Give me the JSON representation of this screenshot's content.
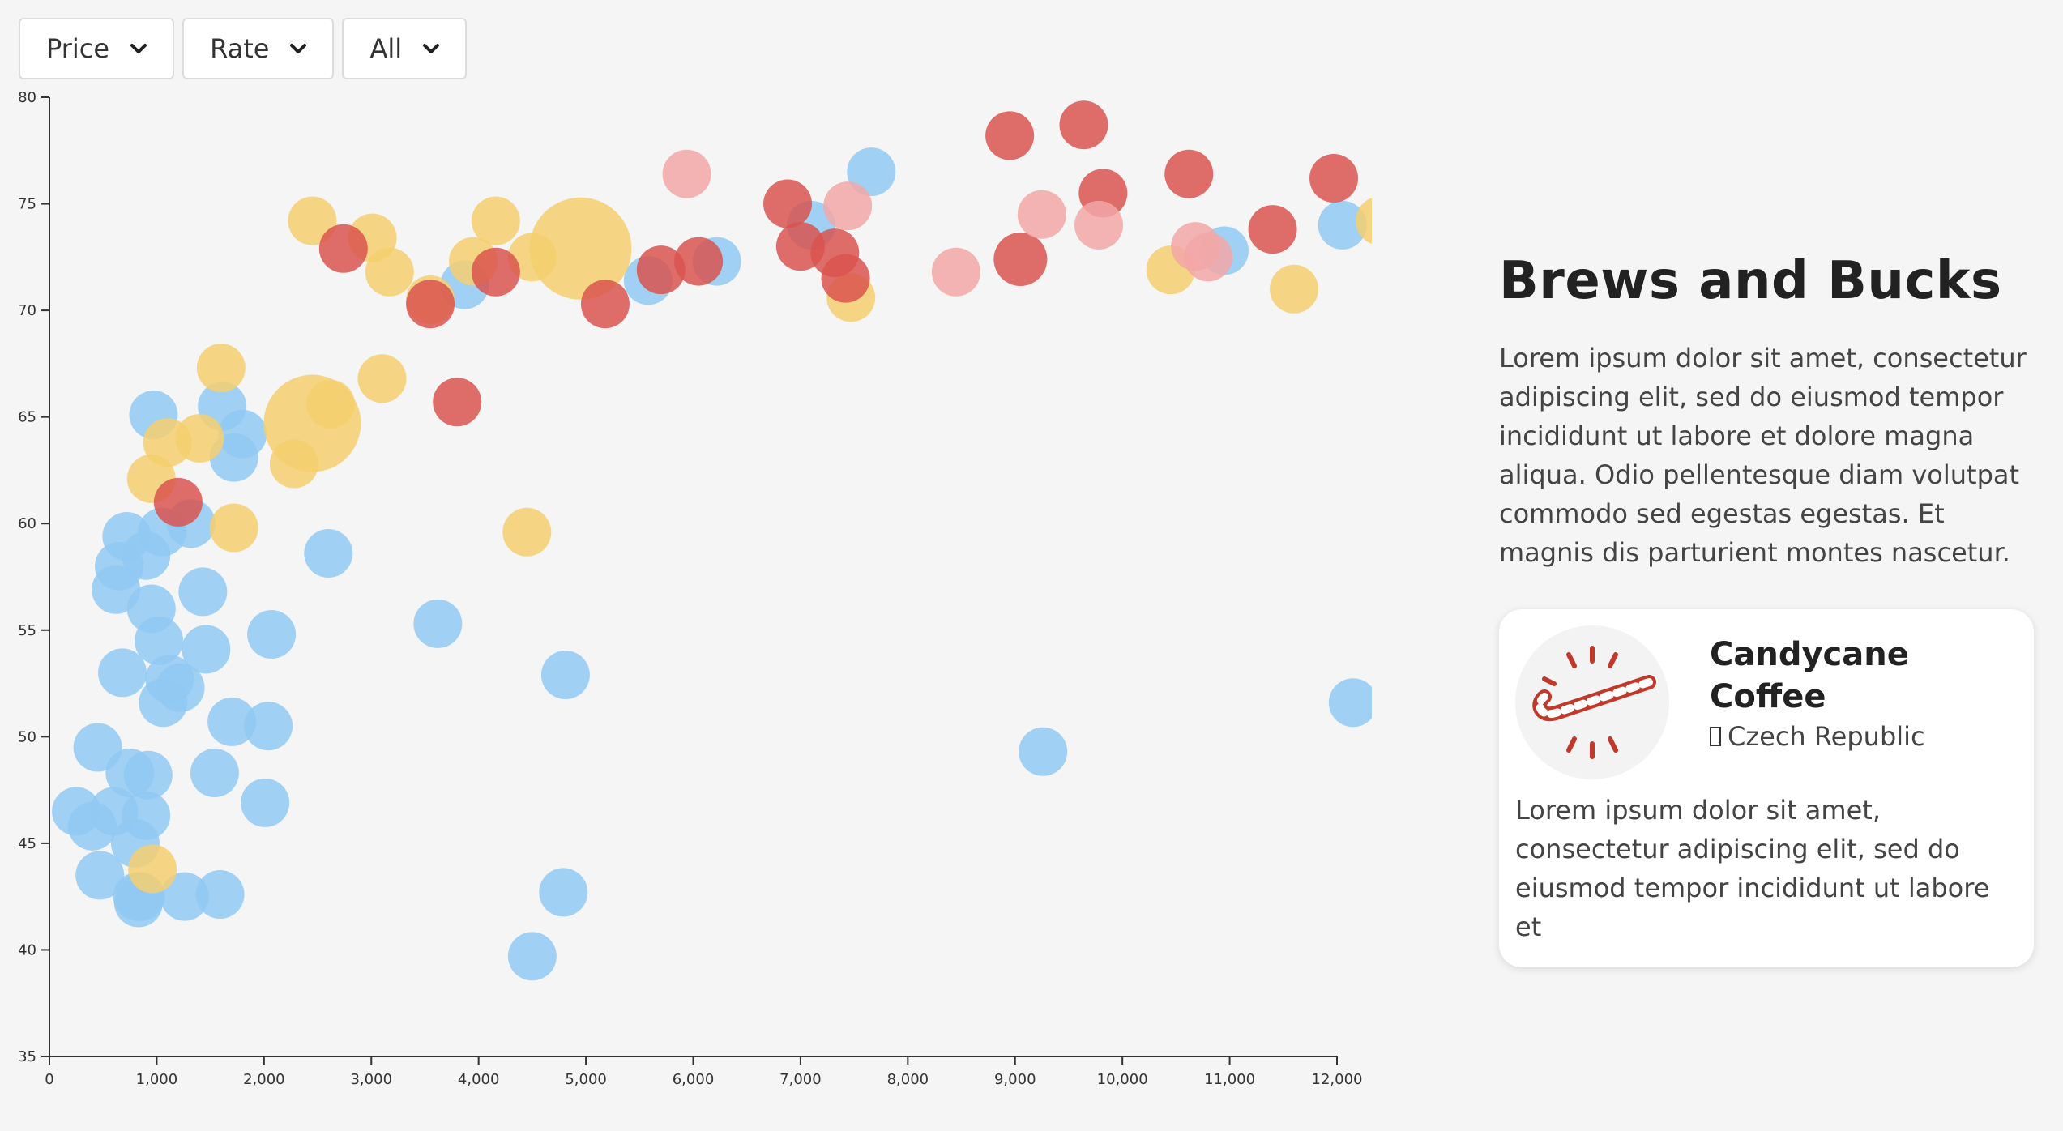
{
  "controls": [
    {
      "label": "Price"
    },
    {
      "label": "Rate"
    },
    {
      "label": "All"
    }
  ],
  "sidebar": {
    "title": "Brews and Bucks",
    "intro": "Lorem ipsum dolor sit amet, consectetur adipiscing elit, sed do eiusmod tempor incididunt ut labore et dolore magna aliqua. Odio pellentesque diam volutpat commodo sed egestas egestas. Et magnis dis parturient montes nascetur.",
    "card": {
      "title": "Candycane Coffee",
      "country": "Czech Republic",
      "description": "Lorem ipsum dolor sit amet, consectetur adipiscing elit, sed do eiusmod tempor incididunt ut labore et",
      "logo_icon": "candy-cane-icon"
    }
  },
  "colors": {
    "blue": "#91c9f2",
    "yellow": "#f5cf6e",
    "red": "#d9534f",
    "pink": "#f2a7a7"
  },
  "chart_data": {
    "type": "scatter",
    "title": "",
    "xlabel": "",
    "ylabel": "",
    "xlim": [
      0,
      12000
    ],
    "ylim": [
      35,
      80
    ],
    "xticks": [
      0,
      1000,
      2000,
      3000,
      4000,
      5000,
      6000,
      7000,
      8000,
      9000,
      10000,
      11000,
      12000
    ],
    "xtick_labels": [
      "0",
      "1,000",
      "2,000",
      "3,000",
      "4,000",
      "5,000",
      "6,000",
      "7,000",
      "8,000",
      "9,000",
      "10,000",
      "11,000",
      "12,000"
    ],
    "yticks": [
      35,
      40,
      45,
      50,
      55,
      60,
      65,
      70,
      75,
      80
    ],
    "ytick_labels": [
      "35",
      "40",
      "45",
      "50",
      "55",
      "60",
      "65",
      "70",
      "75",
      "80"
    ],
    "grid": false,
    "points": [
      {
        "x": 250,
        "y": 46.5,
        "c": "blue",
        "s": 1
      },
      {
        "x": 400,
        "y": 45.8,
        "c": "blue",
        "s": 1
      },
      {
        "x": 450,
        "y": 49.5,
        "c": "blue",
        "s": 1
      },
      {
        "x": 470,
        "y": 43.5,
        "c": "blue",
        "s": 1
      },
      {
        "x": 600,
        "y": 46.5,
        "c": "blue",
        "s": 1
      },
      {
        "x": 620,
        "y": 56.9,
        "c": "blue",
        "s": 1
      },
      {
        "x": 650,
        "y": 58.0,
        "c": "blue",
        "s": 1
      },
      {
        "x": 680,
        "y": 53.0,
        "c": "blue",
        "s": 1
      },
      {
        "x": 720,
        "y": 59.4,
        "c": "blue",
        "s": 1
      },
      {
        "x": 750,
        "y": 48.3,
        "c": "blue",
        "s": 1
      },
      {
        "x": 820,
        "y": 42.5,
        "c": "blue",
        "s": 1
      },
      {
        "x": 800,
        "y": 45.0,
        "c": "blue",
        "s": 1
      },
      {
        "x": 830,
        "y": 42.2,
        "c": "blue",
        "s": 1
      },
      {
        "x": 850,
        "y": 42.5,
        "c": "blue",
        "s": 1
      },
      {
        "x": 900,
        "y": 46.3,
        "c": "blue",
        "s": 1
      },
      {
        "x": 900,
        "y": 58.5,
        "c": "blue",
        "s": 1
      },
      {
        "x": 920,
        "y": 48.2,
        "c": "blue",
        "s": 1
      },
      {
        "x": 950,
        "y": 56.0,
        "c": "blue",
        "s": 1
      },
      {
        "x": 970,
        "y": 65.1,
        "c": "blue",
        "s": 1
      },
      {
        "x": 1020,
        "y": 54.5,
        "c": "blue",
        "s": 1
      },
      {
        "x": 1050,
        "y": 59.6,
        "c": "blue",
        "s": 1
      },
      {
        "x": 1060,
        "y": 51.6,
        "c": "blue",
        "s": 1
      },
      {
        "x": 1120,
        "y": 52.7,
        "c": "blue",
        "s": 1
      },
      {
        "x": 1220,
        "y": 52.3,
        "c": "blue",
        "s": 1
      },
      {
        "x": 1260,
        "y": 42.5,
        "c": "blue",
        "s": 1
      },
      {
        "x": 1320,
        "y": 60.0,
        "c": "blue",
        "s": 1
      },
      {
        "x": 1430,
        "y": 56.8,
        "c": "blue",
        "s": 1
      },
      {
        "x": 1460,
        "y": 54.1,
        "c": "blue",
        "s": 1
      },
      {
        "x": 1540,
        "y": 48.3,
        "c": "blue",
        "s": 1
      },
      {
        "x": 1590,
        "y": 42.6,
        "c": "blue",
        "s": 1
      },
      {
        "x": 1610,
        "y": 65.5,
        "c": "blue",
        "s": 1
      },
      {
        "x": 1700,
        "y": 50.7,
        "c": "blue",
        "s": 1
      },
      {
        "x": 1720,
        "y": 63.1,
        "c": "blue",
        "s": 1
      },
      {
        "x": 1800,
        "y": 64.2,
        "c": "blue",
        "s": 1
      },
      {
        "x": 2010,
        "y": 46.9,
        "c": "blue",
        "s": 1
      },
      {
        "x": 2040,
        "y": 50.5,
        "c": "blue",
        "s": 1
      },
      {
        "x": 2070,
        "y": 54.8,
        "c": "blue",
        "s": 1
      },
      {
        "x": 2600,
        "y": 58.6,
        "c": "blue",
        "s": 1
      },
      {
        "x": 3620,
        "y": 55.3,
        "c": "blue",
        "s": 1
      },
      {
        "x": 3870,
        "y": 71.2,
        "c": "blue",
        "s": 1
      },
      {
        "x": 4500,
        "y": 39.7,
        "c": "blue",
        "s": 1
      },
      {
        "x": 4790,
        "y": 42.7,
        "c": "blue",
        "s": 1
      },
      {
        "x": 4810,
        "y": 52.9,
        "c": "blue",
        "s": 1
      },
      {
        "x": 5580,
        "y": 71.4,
        "c": "blue",
        "s": 1
      },
      {
        "x": 6220,
        "y": 72.3,
        "c": "blue",
        "s": 1
      },
      {
        "x": 7100,
        "y": 74.0,
        "c": "blue",
        "s": 1
      },
      {
        "x": 7660,
        "y": 76.5,
        "c": "blue",
        "s": 1
      },
      {
        "x": 9260,
        "y": 49.3,
        "c": "blue",
        "s": 1
      },
      {
        "x": 10950,
        "y": 72.8,
        "c": "blue",
        "s": 1
      },
      {
        "x": 12050,
        "y": 74.0,
        "c": "blue",
        "s": 1
      },
      {
        "x": 12150,
        "y": 51.6,
        "c": "blue",
        "s": 1
      },
      {
        "x": 960,
        "y": 43.8,
        "c": "yellow",
        "s": 1
      },
      {
        "x": 950,
        "y": 62.1,
        "c": "yellow",
        "s": 1
      },
      {
        "x": 1100,
        "y": 63.8,
        "c": "yellow",
        "s": 1
      },
      {
        "x": 1400,
        "y": 64.0,
        "c": "yellow",
        "s": 1
      },
      {
        "x": 1600,
        "y": 67.3,
        "c": "yellow",
        "s": 1
      },
      {
        "x": 1720,
        "y": 59.8,
        "c": "yellow",
        "s": 1
      },
      {
        "x": 2280,
        "y": 62.8,
        "c": "yellow",
        "s": 1
      },
      {
        "x": 2450,
        "y": 64.7,
        "c": "yellow",
        "s": 2.0
      },
      {
        "x": 2620,
        "y": 65.6,
        "c": "yellow",
        "s": 1
      },
      {
        "x": 2450,
        "y": 74.2,
        "c": "yellow",
        "s": 1
      },
      {
        "x": 3010,
        "y": 73.4,
        "c": "yellow",
        "s": 1
      },
      {
        "x": 3100,
        "y": 66.8,
        "c": "yellow",
        "s": 1
      },
      {
        "x": 3170,
        "y": 71.8,
        "c": "yellow",
        "s": 1
      },
      {
        "x": 3550,
        "y": 70.5,
        "c": "yellow",
        "s": 1
      },
      {
        "x": 3950,
        "y": 72.3,
        "c": "yellow",
        "s": 1
      },
      {
        "x": 4160,
        "y": 74.2,
        "c": "yellow",
        "s": 1
      },
      {
        "x": 4450,
        "y": 59.6,
        "c": "yellow",
        "s": 1
      },
      {
        "x": 4500,
        "y": 72.5,
        "c": "yellow",
        "s": 1
      },
      {
        "x": 4950,
        "y": 72.9,
        "c": "yellow",
        "s": 2.1
      },
      {
        "x": 7470,
        "y": 70.6,
        "c": "yellow",
        "s": 1
      },
      {
        "x": 10450,
        "y": 71.9,
        "c": "yellow",
        "s": 1
      },
      {
        "x": 11600,
        "y": 71.0,
        "c": "yellow",
        "s": 1
      },
      {
        "x": 12400,
        "y": 74.2,
        "c": "yellow",
        "s": 1
      },
      {
        "x": 1200,
        "y": 61.0,
        "c": "red",
        "s": 1
      },
      {
        "x": 2740,
        "y": 72.9,
        "c": "red",
        "s": 1
      },
      {
        "x": 3550,
        "y": 70.3,
        "c": "red",
        "s": 1
      },
      {
        "x": 3800,
        "y": 65.7,
        "c": "red",
        "s": 1
      },
      {
        "x": 4160,
        "y": 71.8,
        "c": "red",
        "s": 1
      },
      {
        "x": 5180,
        "y": 70.3,
        "c": "red",
        "s": 1
      },
      {
        "x": 5700,
        "y": 71.9,
        "c": "red",
        "s": 1
      },
      {
        "x": 6050,
        "y": 72.3,
        "c": "red",
        "s": 1
      },
      {
        "x": 6880,
        "y": 75.0,
        "c": "red",
        "s": 1
      },
      {
        "x": 7000,
        "y": 73.0,
        "c": "red",
        "s": 1
      },
      {
        "x": 7320,
        "y": 72.7,
        "c": "red",
        "s": 1
      },
      {
        "x": 7420,
        "y": 71.5,
        "c": "red",
        "s": 1
      },
      {
        "x": 8950,
        "y": 78.2,
        "c": "red",
        "s": 1
      },
      {
        "x": 9050,
        "y": 72.4,
        "c": "red",
        "s": 1.1
      },
      {
        "x": 9640,
        "y": 78.7,
        "c": "red",
        "s": 1
      },
      {
        "x": 9820,
        "y": 75.5,
        "c": "red",
        "s": 1
      },
      {
        "x": 10620,
        "y": 76.4,
        "c": "red",
        "s": 1
      },
      {
        "x": 11400,
        "y": 73.8,
        "c": "red",
        "s": 1
      },
      {
        "x": 11970,
        "y": 76.2,
        "c": "red",
        "s": 1
      },
      {
        "x": 5940,
        "y": 76.4,
        "c": "pink",
        "s": 1
      },
      {
        "x": 7440,
        "y": 74.9,
        "c": "pink",
        "s": 1
      },
      {
        "x": 8450,
        "y": 71.8,
        "c": "pink",
        "s": 1
      },
      {
        "x": 9250,
        "y": 74.5,
        "c": "pink",
        "s": 1
      },
      {
        "x": 9780,
        "y": 74.0,
        "c": "pink",
        "s": 1
      },
      {
        "x": 10680,
        "y": 73.0,
        "c": "pink",
        "s": 1
      },
      {
        "x": 10800,
        "y": 72.5,
        "c": "pink",
        "s": 1
      }
    ]
  }
}
